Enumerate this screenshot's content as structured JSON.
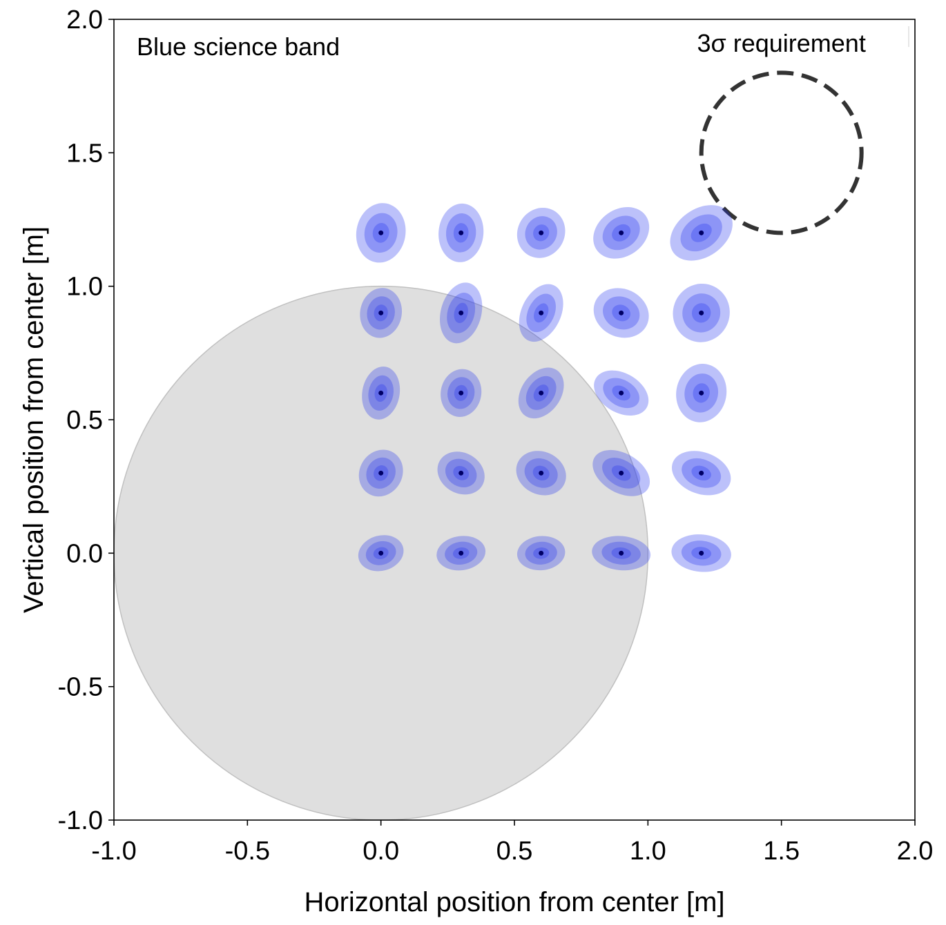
{
  "chart_data": {
    "type": "scatter",
    "title": "",
    "annotation": "Blue science band",
    "xlabel": "Horizontal position from center [m]",
    "ylabel": "Vertical position from center [m]",
    "xlim": [
      -1.0,
      2.0
    ],
    "ylim": [
      -1.0,
      2.0
    ],
    "xticks": [
      -1.0,
      -0.5,
      0.0,
      0.5,
      1.0,
      1.5,
      2.0
    ],
    "yticks": [
      -1.0,
      -0.5,
      0.0,
      0.5,
      1.0,
      1.5,
      2.0
    ],
    "xtick_labels": [
      "-1.0",
      "-0.5",
      "0.0",
      "0.5",
      "1.0",
      "1.5",
      "2.0"
    ],
    "ytick_labels": [
      "-1.0",
      "-0.5",
      "0.0",
      "0.5",
      "1.0",
      "1.5",
      "2.0"
    ],
    "grid": false,
    "colors": {
      "ellipse": "#2233ee",
      "center_dot": "#000066",
      "disk_fill": "#d9d9d9",
      "disk_stroke": "#c0c0c0",
      "requirement": "#333333"
    },
    "reference_disk": {
      "center": [
        0.0,
        0.0
      ],
      "radius": 1.0
    },
    "requirement": {
      "label": "3σ requirement",
      "center": [
        1.5,
        1.5
      ],
      "radius": 0.3
    },
    "ellipse_levels": [
      1,
      2,
      3
    ],
    "ellipses": [
      {
        "x": 0.0,
        "y": 0.0,
        "a": 0.086,
        "b": 0.066,
        "angle": -15
      },
      {
        "x": 0.3,
        "y": 0.0,
        "a": 0.092,
        "b": 0.064,
        "angle": -8
      },
      {
        "x": 0.6,
        "y": 0.0,
        "a": 0.09,
        "b": 0.064,
        "angle": -5
      },
      {
        "x": 0.9,
        "y": 0.0,
        "a": 0.11,
        "b": 0.064,
        "angle": 5
      },
      {
        "x": 1.2,
        "y": 0.0,
        "a": 0.112,
        "b": 0.07,
        "angle": 5
      },
      {
        "x": 0.0,
        "y": 0.3,
        "a": 0.09,
        "b": 0.08,
        "angle": -60
      },
      {
        "x": 0.3,
        "y": 0.3,
        "a": 0.092,
        "b": 0.076,
        "angle": 30
      },
      {
        "x": 0.6,
        "y": 0.3,
        "a": 0.096,
        "b": 0.08,
        "angle": 25
      },
      {
        "x": 0.9,
        "y": 0.3,
        "a": 0.116,
        "b": 0.074,
        "angle": 30
      },
      {
        "x": 1.2,
        "y": 0.3,
        "a": 0.114,
        "b": 0.078,
        "angle": 20
      },
      {
        "x": 0.0,
        "y": 0.6,
        "a": 0.1,
        "b": 0.07,
        "angle": -80
      },
      {
        "x": 0.3,
        "y": 0.6,
        "a": 0.09,
        "b": 0.076,
        "angle": -80
      },
      {
        "x": 0.6,
        "y": 0.6,
        "a": 0.104,
        "b": 0.074,
        "angle": -55
      },
      {
        "x": 0.9,
        "y": 0.6,
        "a": 0.11,
        "b": 0.074,
        "angle": 30
      },
      {
        "x": 1.2,
        "y": 0.6,
        "a": 0.11,
        "b": 0.094,
        "angle": -80
      },
      {
        "x": 0.0,
        "y": 0.9,
        "a": 0.094,
        "b": 0.078,
        "angle": -80
      },
      {
        "x": 0.3,
        "y": 0.9,
        "a": 0.116,
        "b": 0.076,
        "angle": -75
      },
      {
        "x": 0.6,
        "y": 0.9,
        "a": 0.114,
        "b": 0.074,
        "angle": -65
      },
      {
        "x": 0.9,
        "y": 0.9,
        "a": 0.106,
        "b": 0.09,
        "angle": 25
      },
      {
        "x": 1.2,
        "y": 0.9,
        "a": 0.11,
        "b": 0.106,
        "angle": -70
      },
      {
        "x": 0.0,
        "y": 1.2,
        "a": 0.112,
        "b": 0.092,
        "angle": -80
      },
      {
        "x": 0.3,
        "y": 1.2,
        "a": 0.11,
        "b": 0.084,
        "angle": -85
      },
      {
        "x": 0.6,
        "y": 1.2,
        "a": 0.096,
        "b": 0.088,
        "angle": -60
      },
      {
        "x": 0.9,
        "y": 1.2,
        "a": 0.112,
        "b": 0.088,
        "angle": -35
      },
      {
        "x": 1.2,
        "y": 1.2,
        "a": 0.128,
        "b": 0.09,
        "angle": -35
      }
    ]
  }
}
